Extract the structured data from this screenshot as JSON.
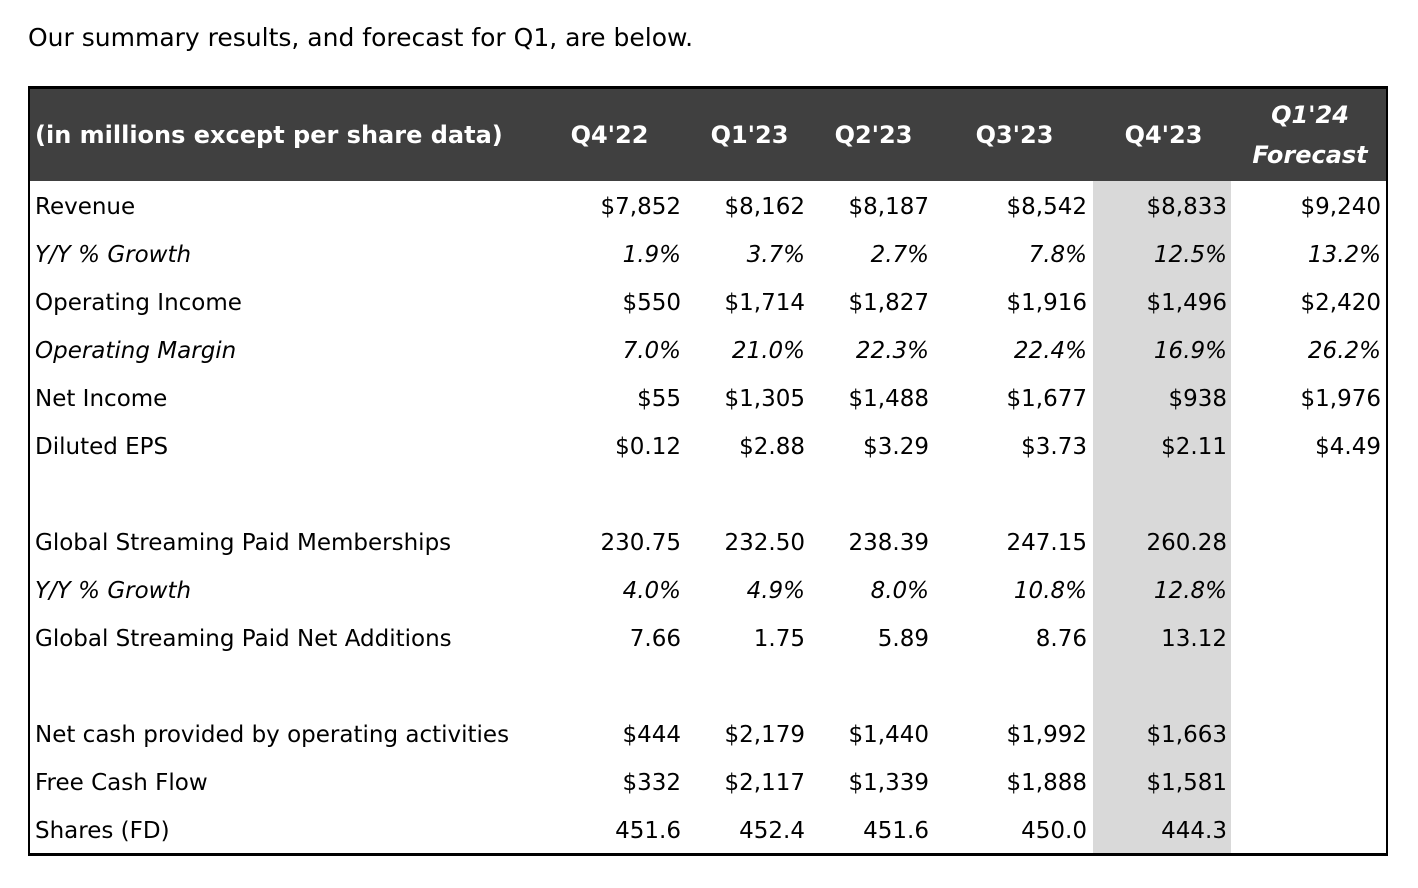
{
  "intro_text": "Our summary results, and forecast for Q1, are below.",
  "table": {
    "header_label": "(in millions except per share data)",
    "columns": [
      "Q4'22",
      "Q1'23",
      "Q2'23",
      "Q3'23",
      "Q4'23"
    ],
    "forecast_column": {
      "line1": "Q1'24",
      "line2": "Forecast"
    },
    "highlight_color": "#d9d9d9",
    "header_bg": "#404040",
    "rows": [
      {
        "label": "Revenue",
        "italic": false,
        "values": [
          "$7,852",
          "$8,162",
          "$8,187",
          "$8,542",
          "$8,833",
          "$9,240"
        ]
      },
      {
        "label": "Y/Y % Growth",
        "italic": true,
        "values": [
          "1.9%",
          "3.7%",
          "2.7%",
          "7.8%",
          "12.5%",
          "13.2%"
        ]
      },
      {
        "label": "Operating Income",
        "italic": false,
        "values": [
          "$550",
          "$1,714",
          "$1,827",
          "$1,916",
          "$1,496",
          "$2,420"
        ]
      },
      {
        "label": "Operating Margin",
        "italic": true,
        "values": [
          "7.0%",
          "21.0%",
          "22.3%",
          "22.4%",
          "16.9%",
          "26.2%"
        ]
      },
      {
        "label": "Net Income",
        "italic": false,
        "values": [
          "$55",
          "$1,305",
          "$1,488",
          "$1,677",
          "$938",
          "$1,976"
        ]
      },
      {
        "label": "Diluted EPS",
        "italic": false,
        "values": [
          "$0.12",
          "$2.88",
          "$3.29",
          "$3.73",
          "$2.11",
          "$4.49"
        ]
      },
      {
        "label": "Global Streaming Paid Memberships",
        "italic": false,
        "values": [
          "230.75",
          "232.50",
          "238.39",
          "247.15",
          "260.28",
          ""
        ]
      },
      {
        "label": "Y/Y % Growth",
        "italic": true,
        "values": [
          "4.0%",
          "4.9%",
          "8.0%",
          "10.8%",
          "12.8%",
          ""
        ]
      },
      {
        "label": "Global Streaming Paid Net Additions",
        "italic": false,
        "values": [
          "7.66",
          "1.75",
          "5.89",
          "8.76",
          "13.12",
          ""
        ]
      },
      {
        "label": "Net cash provided by operating activities",
        "italic": false,
        "values": [
          "$444",
          "$2,179",
          "$1,440",
          "$1,992",
          "$1,663",
          ""
        ]
      },
      {
        "label": "Free Cash Flow",
        "italic": false,
        "values": [
          "$332",
          "$2,117",
          "$1,339",
          "$1,888",
          "$1,581",
          ""
        ]
      },
      {
        "label": "Shares (FD)",
        "italic": false,
        "values": [
          "451.6",
          "452.4",
          "451.6",
          "450.0",
          "444.3",
          ""
        ]
      }
    ]
  }
}
